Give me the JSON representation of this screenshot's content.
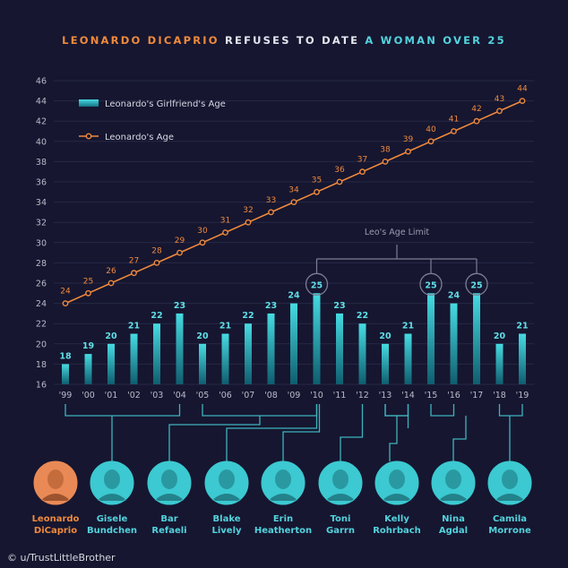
{
  "title": {
    "part1": "LEONARDO DICAPRIO",
    "part2": " REFUSES TO DATE ",
    "part3": "A WOMAN OVER 25"
  },
  "colors": {
    "background": "#161630",
    "bar": "#3fd0d8",
    "age_line": "#f08a3c",
    "title_orange": "#f08a3c",
    "title_cyan": "#53d3dd",
    "connector": "#3fb3bc"
  },
  "chart_data": {
    "type": "bar",
    "categories": [
      "'99",
      "'00",
      "'01",
      "'02",
      "'03",
      "'04",
      "'05",
      "'06",
      "'07",
      "'08",
      "'09",
      "'10",
      "'11",
      "'12",
      "'13",
      "'14",
      "'15",
      "'16",
      "'17",
      "'18",
      "'19"
    ],
    "series": [
      {
        "name": "Leonardo's Girlfriend's Age",
        "type": "bar",
        "values": [
          18,
          19,
          20,
          21,
          22,
          23,
          20,
          21,
          22,
          23,
          24,
          25,
          23,
          22,
          20,
          21,
          25,
          24,
          25,
          20,
          21
        ]
      },
      {
        "name": "Leonardo's Age",
        "type": "line",
        "values": [
          24,
          25,
          26,
          27,
          28,
          29,
          30,
          31,
          32,
          33,
          34,
          35,
          36,
          37,
          38,
          39,
          40,
          41,
          42,
          43,
          44
        ]
      }
    ],
    "yticks": [
      16,
      18,
      20,
      22,
      24,
      26,
      28,
      30,
      32,
      34,
      36,
      38,
      40,
      42,
      44,
      46
    ],
    "ylim": [
      16,
      46
    ],
    "grid": true,
    "legend_position": "top-left",
    "highlighted_bars": [
      "'10",
      "'15",
      "'17"
    ],
    "annotation": "Leo's Age Limit"
  },
  "people": [
    {
      "name_line1": "Leonardo",
      "name_line2": "DiCaprio",
      "role": "self",
      "bracket_categories": []
    },
    {
      "name_line1": "Gisele",
      "name_line2": "Bundchen",
      "role": "girlfriend",
      "bracket_categories": [
        "'99",
        "'04"
      ]
    },
    {
      "name_line1": "Bar",
      "name_line2": "Refaeli",
      "role": "girlfriend",
      "bracket_categories": [
        "'05",
        "'10"
      ]
    },
    {
      "name_line1": "Blake",
      "name_line2": "Lively",
      "role": "girlfriend",
      "bracket_categories": [
        "'11",
        "'11"
      ]
    },
    {
      "name_line1": "Erin",
      "name_line2": "Heatherton",
      "role": "girlfriend",
      "bracket_categories": [
        "'11",
        "'11"
      ]
    },
    {
      "name_line1": "Toni",
      "name_line2": "Garrn",
      "role": "girlfriend",
      "bracket_categories": [
        "'12",
        "'12"
      ]
    },
    {
      "name_line1": "Kelly",
      "name_line2": "Rohrbach",
      "role": "girlfriend",
      "bracket_categories": [
        "'13",
        "'14"
      ]
    },
    {
      "name_line1": "Nina",
      "name_line2": "Agdal",
      "role": "girlfriend",
      "bracket_categories": [
        "'15",
        "'15"
      ]
    },
    {
      "name_line1": "Camila",
      "name_line2": "Morrone",
      "role": "girlfriend",
      "bracket_categories": [
        "'18",
        "'19"
      ]
    }
  ],
  "credit": "u/TrustLittleBrother"
}
